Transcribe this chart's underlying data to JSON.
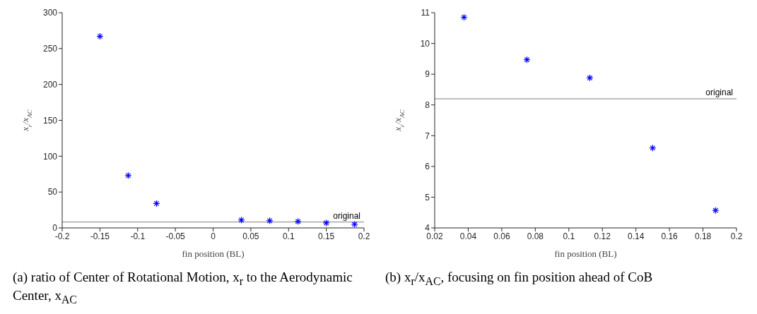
{
  "chart_data": [
    {
      "type": "scatter",
      "xlabel": "fin position (BL)",
      "ylabel": "x$_{r}$/x$_{AC}$",
      "x": [
        -0.15,
        -0.1125,
        -0.075,
        0.0375,
        0.075,
        0.1125,
        0.15,
        0.1875
      ],
      "series": [
        {
          "color": "#0000ff",
          "values": [
            267,
            73,
            34,
            11,
            10,
            9,
            7,
            5
          ]
        }
      ],
      "xlim": [
        -0.2,
        0.2
      ],
      "xticks": [
        -0.2,
        -0.15,
        -0.1,
        -0.05,
        0,
        0.05,
        0.1,
        0.15,
        0.2
      ],
      "ylim": [
        0,
        300
      ],
      "yticks": [
        0,
        50,
        100,
        150,
        200,
        250,
        300
      ],
      "ref_lines": [
        {
          "axis": "y",
          "value": 8.2,
          "label": "original",
          "color": "#808080"
        }
      ],
      "marker": "cross",
      "grid": false,
      "legend": false,
      "annotations": [
        "(a)  ratio of Center of Rotational Motion, x$_{r}$ to the Aerodynamic Center, x$_{AC}$"
      ]
    },
    {
      "type": "scatter",
      "xlabel": "fin position (BL)",
      "ylabel": "x$_{r}$/x$_{AC}$",
      "x": [
        0.0375,
        0.075,
        0.1125,
        0.15,
        0.1875
      ],
      "series": [
        {
          "color": "#0000ff",
          "values": [
            10.85,
            9.47,
            8.88,
            6.6,
            4.57
          ]
        }
      ],
      "xlim": [
        0.02,
        0.2
      ],
      "xticks": [
        0.02,
        0.04,
        0.06,
        0.08,
        0.1,
        0.12,
        0.14,
        0.16,
        0.18,
        0.2
      ],
      "ylim": [
        4,
        11
      ],
      "yticks": [
        4,
        5,
        6,
        7,
        8,
        9,
        10,
        11
      ],
      "ref_lines": [
        {
          "axis": "y",
          "value": 8.2,
          "label": "original",
          "color": "#808080"
        }
      ],
      "marker": "cross",
      "grid": false,
      "legend": false,
      "annotations": [
        "(b) x$_{r}$/x$_{AC}$, focusing on fin position ahead of CoB"
      ]
    }
  ]
}
